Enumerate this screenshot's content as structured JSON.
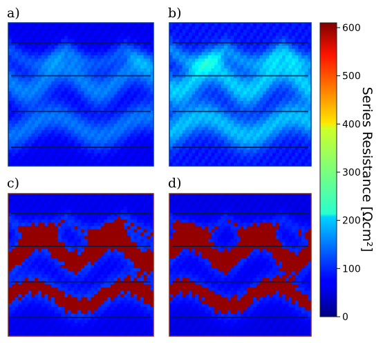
{
  "panel_labels": [
    "a)",
    "b)",
    "c)",
    "d)"
  ],
  "colorbar": {
    "title": "Series Resistance [Ωcm²]",
    "colormap": "jet",
    "range": [
      0,
      610
    ],
    "ticks": [
      "0",
      "100",
      "200",
      "300",
      "400",
      "500",
      "600"
    ]
  },
  "chart_data": {
    "type": "heatmap",
    "title": "",
    "panels": [
      {
        "label": "a)",
        "typical_value": 130,
        "max_value": 230
      },
      {
        "label": "b)",
        "typical_value": 170,
        "max_value": 300
      },
      {
        "label": "c)",
        "typical_value": 130,
        "max_value": 610
      },
      {
        "label": "d)",
        "typical_value": 120,
        "max_value": 610
      }
    ],
    "value_label": "Series Resistance [Ωcm²]",
    "vmin": 0,
    "vmax": 610
  },
  "colors": {
    "low": "#00008f",
    "mid": "#7fff7f",
    "high": "#7f0000"
  }
}
